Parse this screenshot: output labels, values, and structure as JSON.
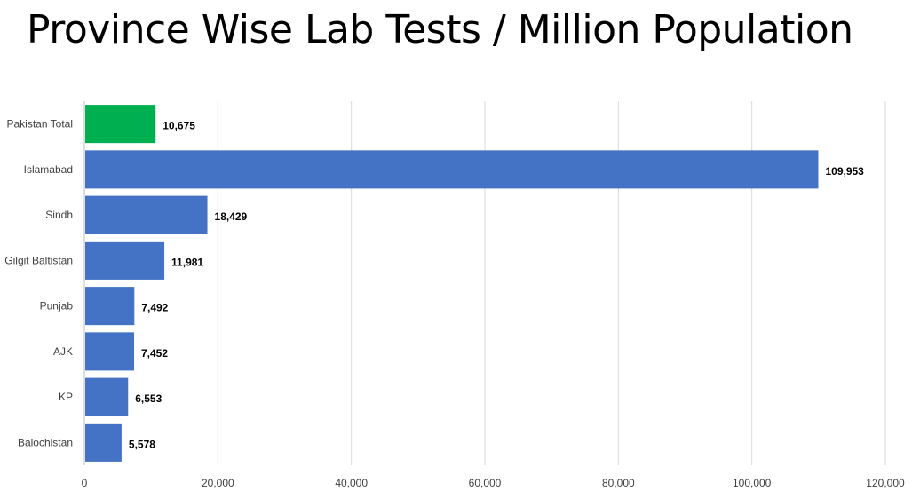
{
  "chart_data": {
    "type": "bar",
    "orientation": "horizontal",
    "title": "Province Wise Lab Tests / Million Population",
    "xlabel": "",
    "ylabel": "",
    "categories": [
      "Pakistan Total",
      "Islamabad",
      "Sindh",
      "Gilgit Baltistan",
      "Punjab",
      "AJK",
      "KP",
      "Balochistan"
    ],
    "values": [
      10675,
      109953,
      18429,
      11981,
      7492,
      7452,
      6553,
      5578
    ],
    "value_labels": [
      "10,675",
      "109,953",
      "18,429",
      "11,981",
      "7,492",
      "7,452",
      "6,553",
      "5,578"
    ],
    "bar_colors": [
      "#00b050",
      "#4472c4",
      "#4472c4",
      "#4472c4",
      "#4472c4",
      "#4472c4",
      "#4472c4",
      "#4472c4"
    ],
    "xlim": [
      0,
      120000
    ],
    "x_ticks": [
      0,
      20000,
      40000,
      60000,
      80000,
      100000,
      120000
    ],
    "x_tick_labels": [
      "0",
      "20,000",
      "40,000",
      "60,000",
      "80,000",
      "100,000",
      "120,000"
    ],
    "grid": "vertical",
    "legend": "none"
  }
}
